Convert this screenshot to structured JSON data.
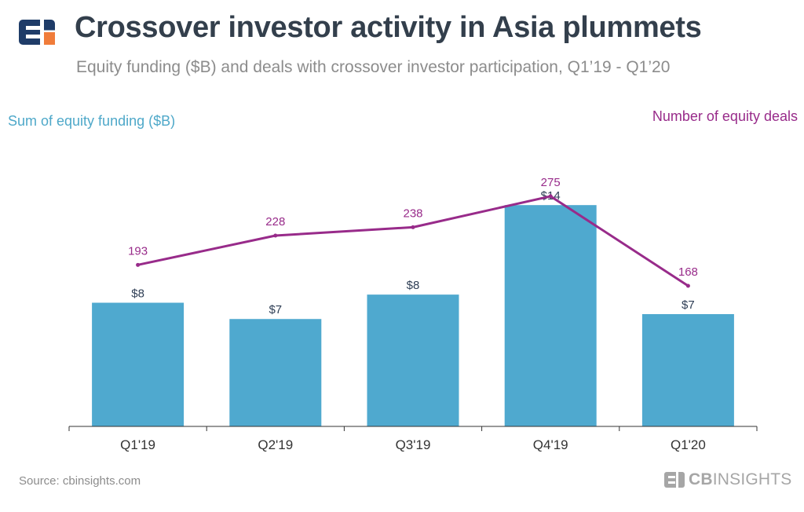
{
  "header": {
    "title": "Crossover investor activity in Asia plummets",
    "subtitle": "Equity funding ($B) and deals with crossover investor participation, Q1’19 - Q1’20"
  },
  "chart_data": {
    "type": "bar",
    "title": "Crossover investor activity in Asia plummets",
    "subtitle": "Equity funding ($B) and deals with crossover investor participation, Q1’19 - Q1’20",
    "categories": [
      "Q1'19",
      "Q2'19",
      "Q3'19",
      "Q4'19",
      "Q1'20"
    ],
    "series": [
      {
        "name": "Sum of equity funding ($B)",
        "type": "bar",
        "axis": "left",
        "values": [
          7.6,
          6.6,
          8.1,
          13.6,
          6.9
        ],
        "labels": [
          "$8",
          "$7",
          "$8",
          "$14",
          "$7"
        ],
        "color": "#4fa9cf"
      },
      {
        "name": "Number of equity deals",
        "type": "line",
        "axis": "right",
        "values": [
          193,
          228,
          238,
          275,
          168
        ],
        "labels": [
          "193",
          "228",
          "238",
          "275",
          "168"
        ],
        "color": "#982b8a"
      }
    ],
    "left_axis_label": "Sum of equity funding ($B)",
    "right_axis_label": "Number of equity deals",
    "y_left_lim": [
      0,
      18
    ],
    "y_right_lim": [
      0,
      350
    ],
    "grid": false,
    "legend": "none"
  },
  "footer": {
    "source": "Source: cbinsights.com",
    "brand_bold": "CB",
    "brand_rest": "INSIGHTS"
  },
  "colors": {
    "title": "#333f4c",
    "subtitle": "#8c8c8c",
    "bar": "#4fa9cf",
    "line": "#982b8a",
    "bar_label": "#2e3e55",
    "axis": "#333333",
    "logo_navy": "#1f3c68",
    "logo_orange": "#f07c3a",
    "brand_grey": "#a6a6a6"
  },
  "icons": {
    "logo": "cb-insights-logo-icon",
    "brand": "cb-insights-wordmark-icon"
  }
}
